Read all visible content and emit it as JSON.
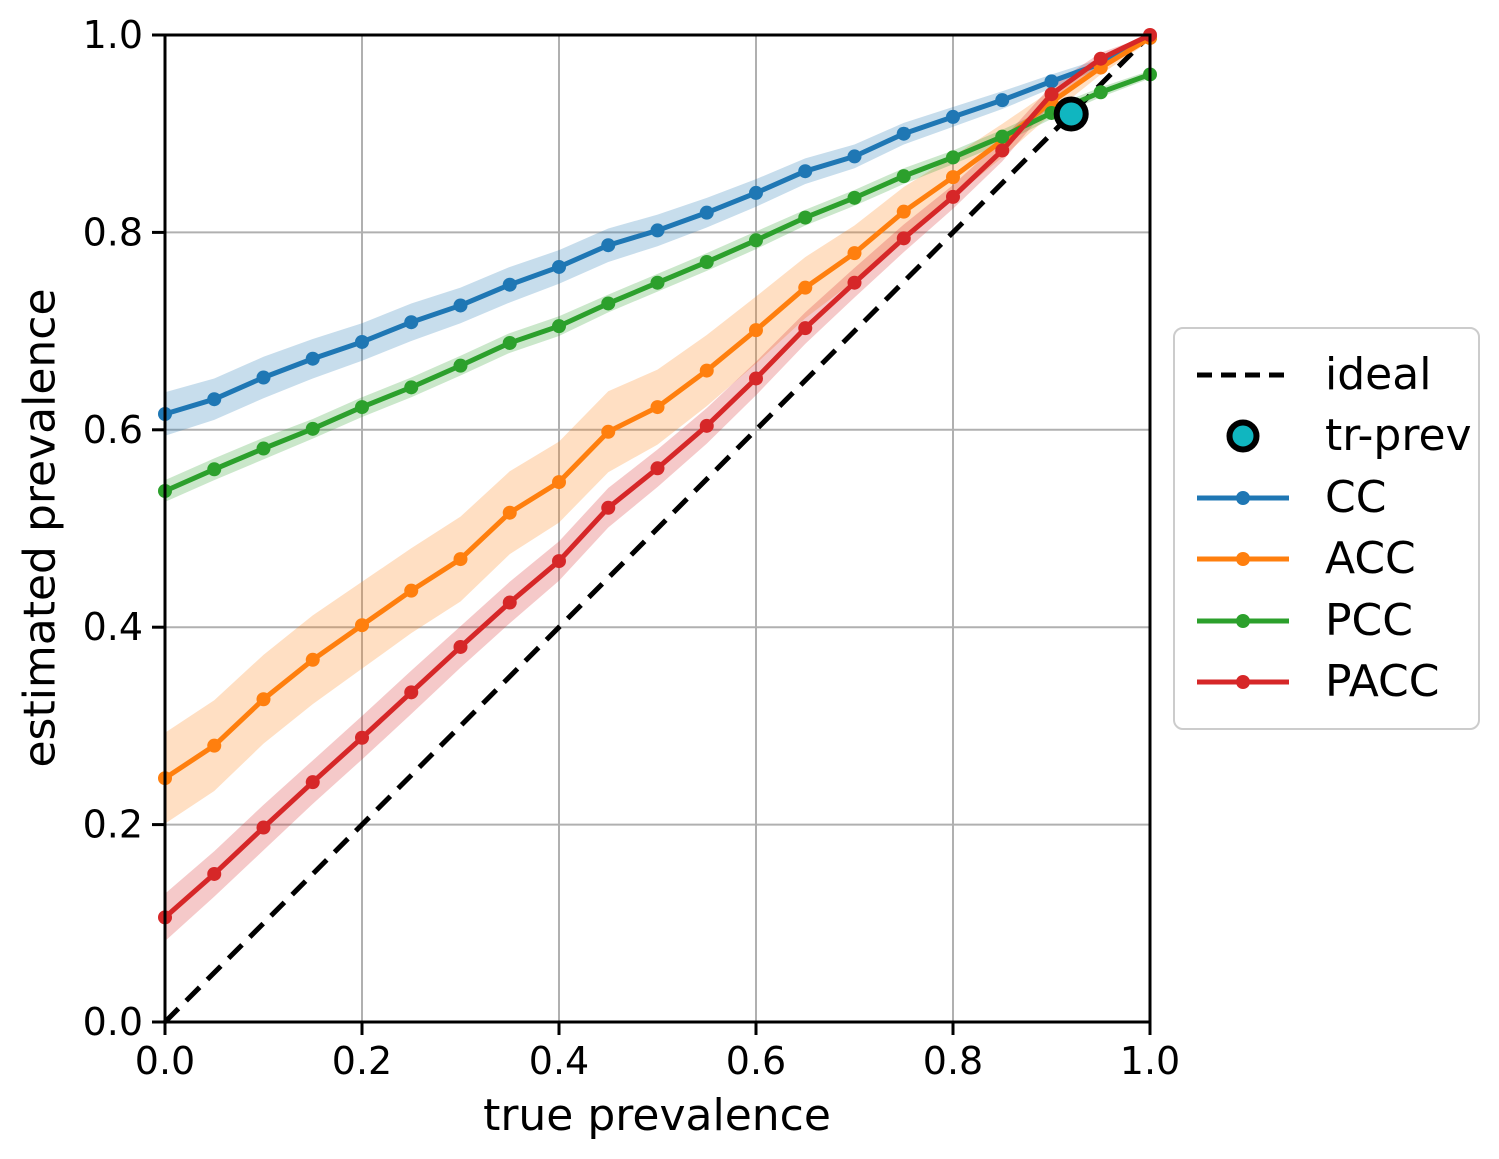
{
  "figure": {
    "xlabel": "true prevalence",
    "ylabel": "estimated prevalence"
  },
  "chart_data": {
    "type": "line",
    "title": "",
    "xlabel": "true prevalence",
    "ylabel": "estimated prevalence",
    "xlim": [
      0.0,
      1.0
    ],
    "ylim": [
      0.0,
      1.0
    ],
    "xticks": [
      0.0,
      0.2,
      0.4,
      0.6,
      0.8,
      1.0
    ],
    "yticks": [
      0.0,
      0.2,
      0.4,
      0.6,
      0.8,
      1.0
    ],
    "grid": true,
    "grid_color": "#b0b0b0",
    "x": [
      0.0,
      0.05,
      0.1,
      0.15,
      0.2,
      0.25,
      0.3,
      0.35,
      0.4,
      0.45,
      0.5,
      0.55,
      0.6,
      0.65,
      0.7,
      0.75,
      0.8,
      0.85,
      0.9,
      0.95,
      1.0
    ],
    "series": [
      {
        "name": "CC",
        "color": "#1f77b4",
        "values": [
          0.616,
          0.631,
          0.653,
          0.672,
          0.689,
          0.709,
          0.726,
          0.747,
          0.765,
          0.787,
          0.802,
          0.82,
          0.84,
          0.862,
          0.877,
          0.9,
          0.917,
          0.934,
          0.953,
          0.971,
          0.997
        ],
        "band_halfwidth": [
          0.022,
          0.021,
          0.021,
          0.02,
          0.019,
          0.019,
          0.018,
          0.018,
          0.017,
          0.017,
          0.016,
          0.015,
          0.014,
          0.013,
          0.012,
          0.011,
          0.01,
          0.009,
          0.007,
          0.005,
          0.003
        ]
      },
      {
        "name": "ACC",
        "color": "#ff7f0e",
        "values": [
          0.247,
          0.28,
          0.327,
          0.367,
          0.402,
          0.437,
          0.469,
          0.516,
          0.547,
          0.598,
          0.623,
          0.66,
          0.701,
          0.744,
          0.779,
          0.821,
          0.856,
          0.893,
          0.932,
          0.967,
          0.997
        ],
        "band_halfwidth": [
          0.046,
          0.046,
          0.045,
          0.045,
          0.044,
          0.043,
          0.043,
          0.042,
          0.041,
          0.041,
          0.038,
          0.036,
          0.034,
          0.031,
          0.028,
          0.025,
          0.021,
          0.017,
          0.012,
          0.007,
          0.003
        ]
      },
      {
        "name": "PCC",
        "color": "#2ca02c",
        "values": [
          0.538,
          0.56,
          0.581,
          0.601,
          0.623,
          0.643,
          0.665,
          0.688,
          0.705,
          0.728,
          0.749,
          0.77,
          0.792,
          0.815,
          0.835,
          0.857,
          0.876,
          0.897,
          0.921,
          0.942,
          0.96
        ],
        "band_halfwidth": [
          0.011,
          0.011,
          0.011,
          0.01,
          0.01,
          0.01,
          0.01,
          0.01,
          0.01,
          0.009,
          0.009,
          0.009,
          0.009,
          0.008,
          0.008,
          0.008,
          0.007,
          0.007,
          0.006,
          0.005,
          0.004
        ]
      },
      {
        "name": "PACC",
        "color": "#d62728",
        "values": [
          0.106,
          0.15,
          0.197,
          0.243,
          0.288,
          0.334,
          0.38,
          0.425,
          0.467,
          0.521,
          0.561,
          0.604,
          0.652,
          0.703,
          0.749,
          0.794,
          0.836,
          0.883,
          0.94,
          0.976,
          1.0
        ],
        "band_halfwidth": [
          0.024,
          0.023,
          0.023,
          0.022,
          0.022,
          0.022,
          0.021,
          0.021,
          0.02,
          0.02,
          0.019,
          0.018,
          0.017,
          0.016,
          0.015,
          0.014,
          0.012,
          0.011,
          0.009,
          0.006,
          0.003
        ]
      }
    ],
    "ideal_line": {
      "label": "ideal",
      "style": "dashed",
      "color": "#000000",
      "from": [
        0.0,
        0.0
      ],
      "to": [
        1.0,
        1.0
      ]
    },
    "tr_prev_marker": {
      "label": "tr-prev",
      "x": 0.92,
      "y": 0.92,
      "fill": "#10b6c0",
      "edge": "#000000"
    },
    "band_alpha": 0.25,
    "legend": {
      "position": "center right",
      "entries": [
        "ideal",
        "tr-prev",
        "CC",
        "ACC",
        "PCC",
        "PACC"
      ]
    }
  }
}
